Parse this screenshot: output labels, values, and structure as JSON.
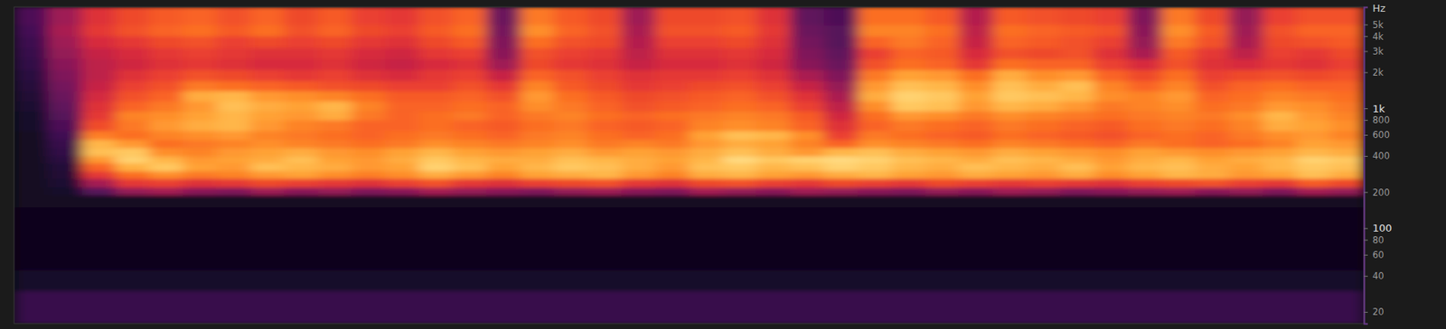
{
  "chart_data": {
    "type": "heatmap",
    "y_label": "Hz",
    "log": "y",
    "tick_labels": "y",
    "xlim": [
      0,
      40
    ],
    "ylim": [
      16,
      7000
    ],
    "zlim": [
      0,
      100
    ],
    "yticks": [
      {
        "value": 5000,
        "label": "5k"
      },
      {
        "value": 4000,
        "label": "4k"
      },
      {
        "value": 3000,
        "label": "3k"
      },
      {
        "value": 2000,
        "label": "2k"
      },
      {
        "value": 1000,
        "label": "1k"
      },
      800,
      600,
      400,
      200,
      100,
      80,
      60,
      40,
      20
    ],
    "x_bins": [
      0,
      1,
      2,
      3,
      4,
      5,
      6,
      7,
      8,
      9,
      10,
      11,
      12,
      13,
      14,
      15,
      16,
      17,
      18,
      19,
      20,
      21,
      22,
      23,
      24,
      25,
      26,
      27,
      28,
      29,
      30,
      31,
      32,
      33,
      34,
      35,
      36,
      37,
      38,
      39,
      40
    ],
    "y_bins": [
      16,
      30,
      45,
      100,
      150,
      190,
      220,
      260,
      300,
      350,
      400,
      470,
      550,
      650,
      800,
      950,
      1150,
      1400,
      1700,
      2100,
      2600,
      3200,
      4000,
      5000,
      7000
    ],
    "values": [
      [
        22,
        22,
        22,
        22,
        22,
        22,
        22,
        22,
        22,
        22,
        22,
        22,
        22,
        22,
        22,
        22,
        22,
        22,
        22,
        22,
        22,
        22,
        22,
        22,
        22,
        22,
        22,
        22,
        22,
        22,
        22,
        22,
        22,
        22,
        22,
        22,
        22,
        22,
        22,
        22
      ],
      [
        10,
        10,
        10,
        10,
        10,
        10,
        10,
        10,
        10,
        10,
        10,
        10,
        10,
        10,
        10,
        10,
        10,
        10,
        10,
        10,
        10,
        10,
        10,
        10,
        10,
        10,
        10,
        10,
        10,
        10,
        10,
        10,
        10,
        10,
        10,
        10,
        10,
        10,
        10,
        10
      ],
      [
        6,
        6,
        6,
        6,
        6,
        6,
        6,
        6,
        6,
        6,
        6,
        6,
        6,
        6,
        6,
        6,
        6,
        6,
        6,
        6,
        6,
        6,
        6,
        6,
        6,
        6,
        6,
        6,
        6,
        6,
        6,
        6,
        6,
        6,
        6,
        6,
        6,
        6,
        6,
        6
      ],
      [
        6,
        6,
        6,
        6,
        6,
        6,
        6,
        6,
        6,
        6,
        6,
        6,
        6,
        6,
        6,
        6,
        6,
        6,
        6,
        6,
        6,
        6,
        6,
        6,
        6,
        6,
        6,
        6,
        6,
        6,
        6,
        6,
        6,
        6,
        6,
        6,
        6,
        6,
        6,
        6
      ],
      [
        8,
        8,
        8,
        8,
        8,
        8,
        8,
        8,
        8,
        8,
        8,
        8,
        8,
        8,
        8,
        8,
        8,
        8,
        8,
        8,
        8,
        8,
        8,
        8,
        8,
        8,
        8,
        8,
        8,
        8,
        8,
        8,
        8,
        8,
        8,
        8,
        8,
        8,
        8,
        8
      ],
      [
        8,
        10,
        30,
        42,
        45,
        40,
        38,
        44,
        40,
        42,
        38,
        40,
        45,
        42,
        40,
        38,
        42,
        44,
        40,
        38,
        45,
        42,
        40,
        44,
        42,
        40,
        38,
        42,
        40,
        44,
        42,
        38,
        40,
        42,
        44,
        40,
        42,
        38,
        45,
        42
      ],
      [
        8,
        12,
        45,
        60,
        62,
        58,
        60,
        64,
        62,
        60,
        58,
        62,
        66,
        60,
        58,
        62,
        64,
        66,
        60,
        58,
        64,
        66,
        62,
        60,
        64,
        62,
        60,
        64,
        62,
        60,
        62,
        60,
        58,
        62,
        64,
        66,
        62,
        60,
        68,
        64
      ],
      [
        8,
        14,
        60,
        72,
        78,
        74,
        76,
        80,
        82,
        78,
        75,
        78,
        84,
        80,
        76,
        82,
        84,
        86,
        80,
        76,
        84,
        86,
        82,
        80,
        84,
        86,
        82,
        80,
        84,
        82,
        80,
        84,
        78,
        82,
        86,
        84,
        80,
        82,
        88,
        84
      ],
      [
        8,
        15,
        70,
        85,
        90,
        82,
        80,
        88,
        86,
        84,
        80,
        82,
        92,
        88,
        82,
        86,
        90,
        88,
        84,
        80,
        88,
        90,
        86,
        88,
        92,
        90,
        86,
        84,
        88,
        86,
        84,
        88,
        82,
        86,
        88,
        84,
        82,
        86,
        90,
        88
      ],
      [
        8,
        18,
        80,
        92,
        86,
        80,
        82,
        84,
        88,
        82,
        80,
        84,
        90,
        86,
        84,
        84,
        88,
        86,
        84,
        82,
        86,
        94,
        90,
        92,
        94,
        92,
        88,
        86,
        84,
        88,
        86,
        84,
        80,
        84,
        86,
        82,
        84,
        86,
        92,
        90
      ],
      [
        8,
        20,
        88,
        90,
        78,
        76,
        80,
        82,
        84,
        80,
        78,
        82,
        86,
        82,
        80,
        82,
        84,
        80,
        82,
        80,
        84,
        88,
        84,
        80,
        86,
        88,
        84,
        82,
        80,
        84,
        82,
        80,
        78,
        82,
        80,
        78,
        80,
        82,
        86,
        84
      ],
      [
        8,
        22,
        86,
        80,
        72,
        74,
        76,
        78,
        76,
        74,
        72,
        74,
        78,
        76,
        74,
        76,
        78,
        74,
        76,
        74,
        80,
        84,
        82,
        76,
        70,
        78,
        76,
        74,
        72,
        76,
        74,
        72,
        70,
        74,
        72,
        70,
        72,
        76,
        82,
        80
      ],
      [
        8,
        25,
        75,
        72,
        76,
        78,
        80,
        76,
        74,
        72,
        70,
        72,
        74,
        72,
        70,
        74,
        76,
        72,
        70,
        72,
        82,
        88,
        86,
        78,
        62,
        74,
        72,
        70,
        68,
        72,
        70,
        68,
        66,
        70,
        72,
        70,
        74,
        78,
        80,
        76
      ],
      [
        10,
        28,
        65,
        74,
        80,
        84,
        86,
        80,
        76,
        74,
        70,
        70,
        72,
        70,
        68,
        72,
        74,
        70,
        68,
        70,
        76,
        78,
        76,
        70,
        58,
        70,
        74,
        72,
        70,
        74,
        72,
        70,
        68,
        72,
        74,
        72,
        76,
        84,
        82,
        78
      ],
      [
        10,
        30,
        60,
        76,
        78,
        82,
        86,
        82,
        80,
        84,
        74,
        70,
        72,
        74,
        70,
        74,
        76,
        72,
        70,
        72,
        74,
        76,
        74,
        68,
        54,
        72,
        80,
        78,
        74,
        78,
        76,
        74,
        72,
        74,
        76,
        74,
        78,
        86,
        80,
        76
      ],
      [
        12,
        32,
        58,
        70,
        74,
        80,
        88,
        84,
        82,
        86,
        76,
        70,
        70,
        72,
        70,
        78,
        74,
        70,
        66,
        68,
        70,
        72,
        70,
        62,
        50,
        78,
        90,
        88,
        80,
        86,
        84,
        80,
        74,
        76,
        78,
        72,
        74,
        80,
        78,
        74
      ],
      [
        14,
        34,
        55,
        66,
        70,
        84,
        86,
        80,
        78,
        76,
        72,
        68,
        68,
        70,
        66,
        80,
        72,
        68,
        64,
        66,
        68,
        70,
        66,
        58,
        46,
        84,
        92,
        90,
        82,
        90,
        88,
        86,
        78,
        76,
        80,
        70,
        72,
        76,
        74,
        72
      ],
      [
        16,
        36,
        52,
        62,
        66,
        74,
        72,
        70,
        68,
        66,
        64,
        62,
        62,
        66,
        60,
        76,
        68,
        64,
        60,
        62,
        64,
        66,
        62,
        52,
        42,
        80,
        88,
        86,
        78,
        88,
        84,
        88,
        76,
        70,
        76,
        66,
        70,
        72,
        70,
        70
      ],
      [
        18,
        38,
        50,
        58,
        62,
        66,
        64,
        62,
        60,
        62,
        58,
        56,
        60,
        62,
        52,
        70,
        66,
        62,
        58,
        60,
        60,
        62,
        58,
        46,
        38,
        74,
        82,
        80,
        72,
        84,
        78,
        80,
        70,
        64,
        72,
        62,
        64,
        66,
        64,
        66
      ],
      [
        20,
        40,
        50,
        54,
        58,
        60,
        58,
        56,
        56,
        58,
        54,
        52,
        56,
        58,
        44,
        64,
        60,
        58,
        52,
        56,
        56,
        58,
        54,
        40,
        34,
        66,
        72,
        70,
        60,
        72,
        70,
        70,
        62,
        56,
        66,
        58,
        56,
        60,
        58,
        62
      ],
      [
        22,
        42,
        52,
        56,
        60,
        62,
        60,
        58,
        58,
        60,
        56,
        54,
        60,
        62,
        40,
        66,
        62,
        60,
        50,
        58,
        58,
        60,
        56,
        38,
        32,
        62,
        70,
        68,
        56,
        66,
        64,
        66,
        58,
        46,
        68,
        60,
        50,
        62,
        60,
        64
      ],
      [
        24,
        44,
        56,
        60,
        64,
        66,
        62,
        64,
        62,
        64,
        60,
        58,
        64,
        68,
        38,
        72,
        66,
        64,
        48,
        62,
        62,
        64,
        58,
        36,
        30,
        70,
        74,
        70,
        52,
        70,
        68,
        66,
        62,
        42,
        74,
        66,
        46,
        64,
        66,
        68
      ],
      [
        26,
        46,
        60,
        66,
        70,
        72,
        68,
        72,
        66,
        70,
        64,
        62,
        68,
        72,
        36,
        78,
        70,
        66,
        46,
        66,
        66,
        68,
        60,
        34,
        30,
        76,
        76,
        72,
        50,
        72,
        70,
        68,
        66,
        40,
        78,
        68,
        44,
        66,
        70,
        70
      ],
      [
        28,
        44,
        58,
        64,
        68,
        70,
        66,
        70,
        64,
        68,
        62,
        60,
        66,
        70,
        34,
        74,
        68,
        64,
        44,
        64,
        64,
        66,
        58,
        32,
        28,
        72,
        72,
        68,
        48,
        68,
        66,
        64,
        62,
        38,
        74,
        64,
        42,
        62,
        66,
        66
      ]
    ]
  }
}
